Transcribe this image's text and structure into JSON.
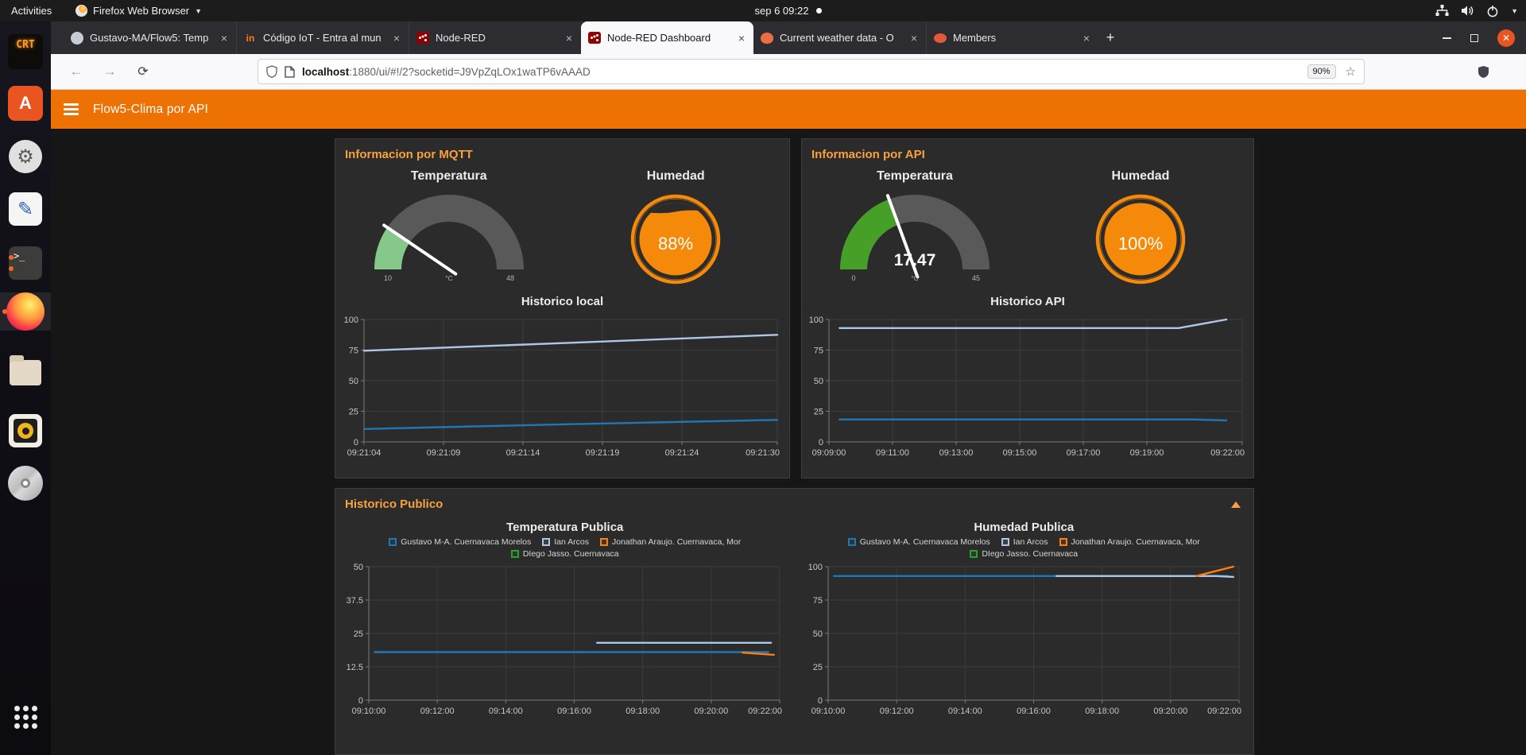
{
  "colors": {
    "accent_orange": "#ee7203",
    "group_title_orange": "#f9a13d",
    "donut_orange": "#f58a0a",
    "close_button_orange": "#e95420",
    "series_blue": "#1f77b4",
    "series_light_blue": "#aec7e8",
    "series_orange": "#ff7f0e",
    "series_green": "#2ca02c"
  },
  "system_bar": {
    "activities_label": "Activities",
    "app_menu_label": "Firefox Web Browser",
    "clock": "sep 6  09:22"
  },
  "dock": {
    "items": [
      {
        "name": "cool-retro-term",
        "text": "CRT"
      },
      {
        "name": "ubuntu-software",
        "text": "A"
      },
      {
        "name": "settings"
      },
      {
        "name": "text-editor"
      },
      {
        "name": "terminal",
        "text": ">_",
        "badges": 2
      },
      {
        "name": "firefox",
        "badges": 1,
        "focused": true
      },
      {
        "name": "files"
      },
      {
        "name": "rhythmbox"
      },
      {
        "name": "disc"
      },
      {
        "name": "show-applications"
      }
    ]
  },
  "browser": {
    "tabs": [
      {
        "title": "Gustavo-MA/Flow5: Temp",
        "icon": "github",
        "active": false
      },
      {
        "title": "Código IoT - Entra al mun",
        "icon": "codigoiot",
        "active": false
      },
      {
        "title": "Node-RED",
        "icon": "nodered",
        "active": false
      },
      {
        "title": "Node-RED Dashboard",
        "icon": "nodered",
        "active": true
      },
      {
        "title": "Current weather data - O",
        "icon": "weather",
        "active": false
      },
      {
        "title": "Members",
        "icon": "members",
        "active": false
      }
    ],
    "new_tab_label": "+",
    "url": {
      "host": "localhost",
      "path": ":1880/ui/#!/2?socketid=J9VpZqLOx1waTP6vAAAD",
      "zoom_badge": "90%"
    }
  },
  "dashboard": {
    "title": "Flow5-Clima por API",
    "groups": [
      {
        "title": "Informacion por MQTT",
        "widgets": [
          {
            "kind": "gauge",
            "title": "Temperatura",
            "min_label": "10",
            "max_label": "48",
            "units_label": "°C",
            "value_label": "",
            "fraction": 0.19,
            "color": "#86c78a"
          },
          {
            "kind": "donut",
            "title": "Humedad",
            "value_label": "88%",
            "percent": 88
          }
        ]
      },
      {
        "title": "Informacion por API",
        "widgets": [
          {
            "kind": "gauge",
            "title": "Temperatura",
            "min_label": "0",
            "max_label": "45",
            "units_label": "°C",
            "value_label": "17.47",
            "fraction": 0.388,
            "color": "#46a028"
          },
          {
            "kind": "donut",
            "title": "Humedad",
            "value_label": "100%",
            "percent": 100
          }
        ]
      },
      {
        "title": "Historico Publico"
      }
    ]
  },
  "chart_data": [
    {
      "type": "line",
      "title": "Historico local",
      "xlim": [
        0,
        26
      ],
      "x_ticks": [
        {
          "t": 0,
          "label": "09:21:04"
        },
        {
          "t": 5,
          "label": "09:21:09"
        },
        {
          "t": 10,
          "label": "09:21:14"
        },
        {
          "t": 15,
          "label": "09:21:19"
        },
        {
          "t": 20,
          "label": "09:21:24"
        },
        {
          "t": 26,
          "label": "09:21:30"
        }
      ],
      "ylim": [
        0,
        100
      ],
      "y_ticks": [
        0,
        25,
        50,
        75,
        100
      ],
      "legend": false,
      "series": [
        {
          "name": "series-1",
          "color": "#aec7e8",
          "points": [
            [
              0,
              74.5
            ],
            [
              13,
              81
            ],
            [
              26,
              87.5
            ]
          ]
        },
        {
          "name": "series-2",
          "color": "#1f77b4",
          "points": [
            [
              0,
              10.5
            ],
            [
              13,
              14.5
            ],
            [
              26,
              18
            ]
          ]
        }
      ]
    },
    {
      "type": "line",
      "title": "Historico API",
      "xlim": [
        0,
        780
      ],
      "x_ticks": [
        {
          "t": 0,
          "label": "09:09:00"
        },
        {
          "t": 120,
          "label": "09:11:00"
        },
        {
          "t": 240,
          "label": "09:13:00"
        },
        {
          "t": 360,
          "label": "09:15:00"
        },
        {
          "t": 480,
          "label": "09:17:00"
        },
        {
          "t": 600,
          "label": "09:19:00"
        },
        {
          "t": 780,
          "label": "09:22:00"
        }
      ],
      "ylim": [
        0,
        100
      ],
      "y_ticks": [
        0,
        25,
        50,
        75,
        100
      ],
      "legend": false,
      "series": [
        {
          "name": "series-1",
          "color": "#aec7e8",
          "points": [
            [
              20,
              93
            ],
            [
              660,
              93
            ],
            [
              750,
              100
            ]
          ]
        },
        {
          "name": "series-2",
          "color": "#1f77b4",
          "points": [
            [
              20,
              18.3
            ],
            [
              690,
              18.3
            ],
            [
              750,
              17.5
            ]
          ]
        }
      ]
    },
    {
      "type": "line",
      "title": "Temperatura Publica",
      "xlim": [
        0,
        720
      ],
      "x_ticks": [
        {
          "t": 0,
          "label": "09:10:00"
        },
        {
          "t": 120,
          "label": "09:12:00"
        },
        {
          "t": 240,
          "label": "09:14:00"
        },
        {
          "t": 360,
          "label": "09:16:00"
        },
        {
          "t": 480,
          "label": "09:18:00"
        },
        {
          "t": 600,
          "label": "09:20:00"
        },
        {
          "t": 720,
          "label": "09:22:00"
        }
      ],
      "ylim": [
        0,
        50
      ],
      "y_ticks": [
        0,
        12.5,
        25,
        37.5,
        50
      ],
      "legend": true,
      "series": [
        {
          "name": "Gustavo M-A. Cuernavaca Morelos",
          "color": "#1f77b4",
          "points": [
            [
              10,
              18
            ],
            [
              700,
              18
            ]
          ]
        },
        {
          "name": "Ian Arcos",
          "color": "#aec7e8",
          "points": [
            [
              400,
              21.5
            ],
            [
              705,
              21.5
            ]
          ]
        },
        {
          "name": "Jonathan Araujo. Cuernavaca, Mor",
          "color": "#ff7f0e",
          "points": [
            [
              655,
              17.8
            ],
            [
              710,
              17
            ]
          ]
        },
        {
          "name": "DIego Jasso. Cuernavaca",
          "color": "#2ca02c",
          "points": []
        }
      ]
    },
    {
      "type": "line",
      "title": "Humedad Publica",
      "xlim": [
        0,
        720
      ],
      "x_ticks": [
        {
          "t": 0,
          "label": "09:10:00"
        },
        {
          "t": 120,
          "label": "09:12:00"
        },
        {
          "t": 240,
          "label": "09:14:00"
        },
        {
          "t": 360,
          "label": "09:16:00"
        },
        {
          "t": 480,
          "label": "09:18:00"
        },
        {
          "t": 600,
          "label": "09:20:00"
        },
        {
          "t": 720,
          "label": "09:22:00"
        }
      ],
      "ylim": [
        0,
        100
      ],
      "y_ticks": [
        0,
        25,
        50,
        75,
        100
      ],
      "legend": true,
      "series": [
        {
          "name": "Gustavo M-A. Cuernavaca Morelos",
          "color": "#1f77b4",
          "points": [
            [
              10,
              93
            ],
            [
              700,
              93
            ]
          ]
        },
        {
          "name": "Ian Arcos",
          "color": "#aec7e8",
          "points": [
            [
              400,
              93
            ],
            [
              680,
              93
            ],
            [
              710,
              92.3
            ]
          ]
        },
        {
          "name": "Jonathan Araujo. Cuernavaca, Mor",
          "color": "#ff7f0e",
          "points": [
            [
              645,
              93
            ],
            [
              710,
              100
            ]
          ]
        },
        {
          "name": "DIego Jasso. Cuernavaca",
          "color": "#2ca02c",
          "points": []
        }
      ]
    }
  ]
}
